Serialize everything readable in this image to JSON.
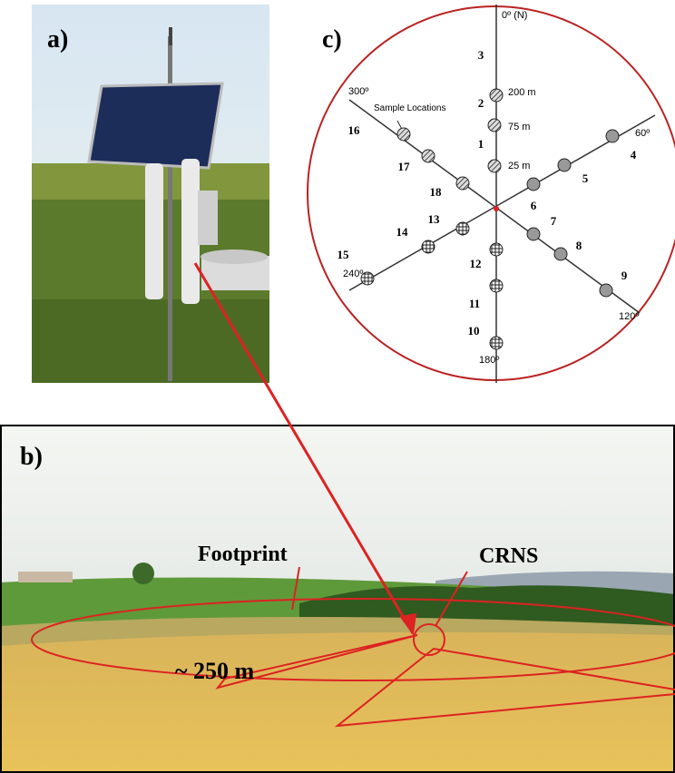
{
  "panel_a": {
    "label": "a)"
  },
  "panel_b": {
    "label": "b)",
    "annotations": [
      "Footprint",
      "CRNS",
      "~ 250 m"
    ]
  },
  "panel_c": {
    "label": "c)",
    "directions": [
      "0º (N)",
      "60º",
      "120º",
      "180º",
      "240º",
      "300º"
    ],
    "legend": "Sample Locations",
    "distances": [
      "200 m",
      "75 m",
      "25 m"
    ],
    "samples": [
      1,
      2,
      3,
      4,
      5,
      6,
      7,
      8,
      9,
      10,
      11,
      12,
      13,
      14,
      15,
      16,
      17,
      18
    ]
  }
}
